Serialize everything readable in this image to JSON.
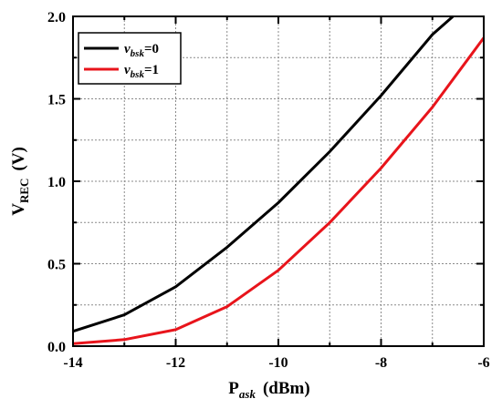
{
  "chart_data": {
    "type": "line",
    "xlabel": {
      "main": "P",
      "sub": "ask",
      "unit": "(dBm)"
    },
    "ylabel": {
      "main": "V",
      "sub": "REC",
      "unit": "(V)"
    },
    "xlim": [
      -14,
      -6
    ],
    "ylim": [
      0.0,
      2.0
    ],
    "xticks": [
      -14,
      -12,
      -10,
      -8,
      -6
    ],
    "xtick_labels": [
      "-14",
      "-12",
      "-10",
      "-8",
      "-6"
    ],
    "yticks": [
      0.0,
      0.5,
      1.0,
      1.5,
      2.0
    ],
    "ytick_labels": [
      "0.0",
      "0.5",
      "1.0",
      "1.5",
      "2.0"
    ],
    "grid": true,
    "legend_position": "top-left",
    "series": [
      {
        "legend": {
          "var": "v",
          "sub": "bsk",
          "value": "=0"
        },
        "color": "#000000",
        "x": [
          -14,
          -13,
          -12,
          -11,
          -10,
          -9,
          -8,
          -7,
          -6.6
        ],
        "y": [
          0.09,
          0.19,
          0.36,
          0.6,
          0.87,
          1.18,
          1.52,
          1.89,
          2.0
        ]
      },
      {
        "legend": {
          "var": "v",
          "sub": "bsk",
          "value": "=1"
        },
        "color": "#e8141b",
        "x": [
          -14,
          -13,
          -12,
          -11,
          -10,
          -9,
          -8,
          -7,
          -6
        ],
        "y": [
          0.015,
          0.04,
          0.1,
          0.24,
          0.46,
          0.75,
          1.08,
          1.45,
          1.87
        ]
      }
    ]
  }
}
